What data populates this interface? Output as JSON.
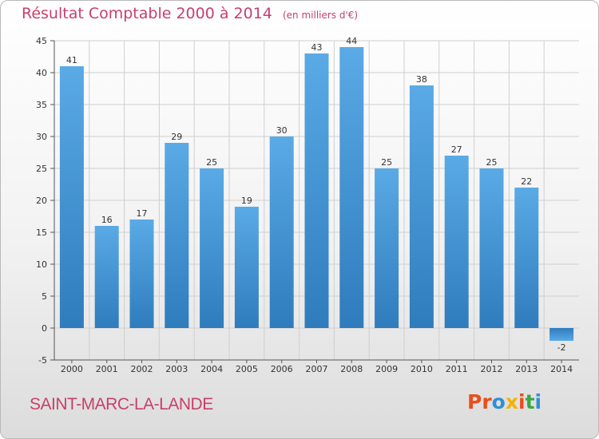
{
  "header": {
    "title": "Résultat Comptable 2000 à 2014",
    "unit": "(en milliers d'€)"
  },
  "footer": {
    "commune": "SAINT-MARC-LA-LANDE",
    "logo": "Proxiti",
    "logo_colors": [
      "#e94e1b",
      "#e94e1b",
      "#2f8fd8",
      "#f2b300",
      "#e94e1b",
      "#3aa845",
      "#2f8fd8"
    ]
  },
  "colors": {
    "bar_top": "#5aaae6",
    "bar_bottom": "#2f7cbd",
    "grid": "#cfcfcf",
    "axis": "#555555",
    "title": "#c8406a"
  },
  "chart_data": {
    "type": "bar",
    "title": "Résultat Comptable 2000 à 2014",
    "ylabel": "(en milliers d'€)",
    "xlabel": "",
    "categories": [
      "2000",
      "2001",
      "2002",
      "2003",
      "2004",
      "2005",
      "2006",
      "2007",
      "2008",
      "2009",
      "2010",
      "2011",
      "2012",
      "2013",
      "2014"
    ],
    "values": [
      41,
      16,
      17,
      29,
      25,
      19,
      30,
      43,
      44,
      25,
      38,
      27,
      25,
      22,
      -2
    ],
    "ylim": [
      -5,
      45
    ],
    "yticks": [
      -5,
      0,
      5,
      10,
      15,
      20,
      25,
      30,
      35,
      40,
      45
    ],
    "grid": true
  }
}
